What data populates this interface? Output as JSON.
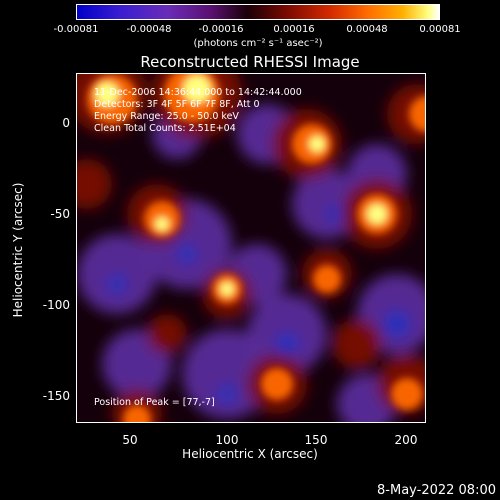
{
  "colorbar": {
    "ticks": [
      "-0.00081",
      "-0.00048",
      "-0.00016",
      "0.00016",
      "0.00048",
      "0.00081"
    ],
    "unit": "(photons cm⁻² s⁻¹ asec⁻²)"
  },
  "title": "Reconstructed RHESSI Image",
  "info": {
    "time": "11-Dec-2006 14:36:44.000 to 14:42:44.000",
    "detectors": "Detectors: 3F 4F 5F 6F 7F 8F, Att 0",
    "energy": "Energy Range: 25.0 - 50.0 keV",
    "clean": "Clean    Total Counts: 2.51E+04",
    "peak": "Position of Peak = [77,-7]"
  },
  "axes": {
    "xlabel": "Heliocentric X (arcsec)",
    "ylabel": "Heliocentric Y (arcsec)",
    "xticks": [
      "50",
      "100",
      "150",
      "200"
    ],
    "yticks": [
      "0",
      "-50",
      "-100",
      "-150"
    ]
  },
  "datestamp": "8-May-2022 08:00",
  "colors": {
    "background": "#000000",
    "hot_low": "#7a0a00",
    "hot_mid": "#ff6a00",
    "hot_high": "#ffff80",
    "cold": "#5a2a9a",
    "cold_deep": "#2030c0"
  }
}
